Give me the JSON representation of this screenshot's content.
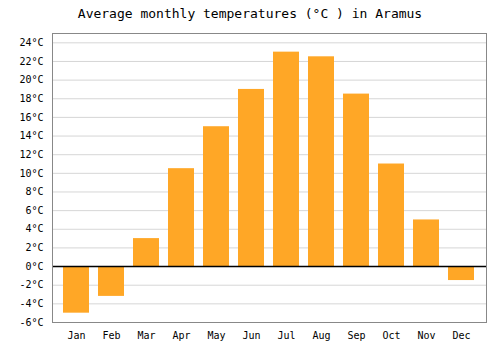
{
  "chart_data": {
    "type": "bar",
    "title": "Average monthly temperatures (°C ) in Aramus",
    "categories": [
      "Jan",
      "Feb",
      "Mar",
      "Apr",
      "May",
      "Jun",
      "Jul",
      "Aug",
      "Sep",
      "Oct",
      "Nov",
      "Dec"
    ],
    "values": [
      -5.0,
      -3.2,
      3.0,
      10.5,
      15.0,
      19.0,
      23.0,
      22.5,
      18.5,
      11.0,
      5.0,
      -1.5
    ],
    "color": "#FFA726",
    "ylim": [
      -6,
      25
    ],
    "yticks": [
      {
        "value": -6,
        "label": "-6°C"
      },
      {
        "value": -4,
        "label": "-4°C"
      },
      {
        "value": -2,
        "label": "-2°C"
      },
      {
        "value": 0,
        "label": "0°C"
      },
      {
        "value": 2,
        "label": "2°C"
      },
      {
        "value": 4,
        "label": "4°C"
      },
      {
        "value": 6,
        "label": "6°C"
      },
      {
        "value": 8,
        "label": "8°C"
      },
      {
        "value": 10,
        "label": "10°C"
      },
      {
        "value": 12,
        "label": "12°C"
      },
      {
        "value": 14,
        "label": "14°C"
      },
      {
        "value": 16,
        "label": "16°C"
      },
      {
        "value": 18,
        "label": "18°C"
      },
      {
        "value": 20,
        "label": "20°C"
      },
      {
        "value": 22,
        "label": "22°C"
      },
      {
        "value": 24,
        "label": "24°C"
      }
    ],
    "grid": true
  }
}
